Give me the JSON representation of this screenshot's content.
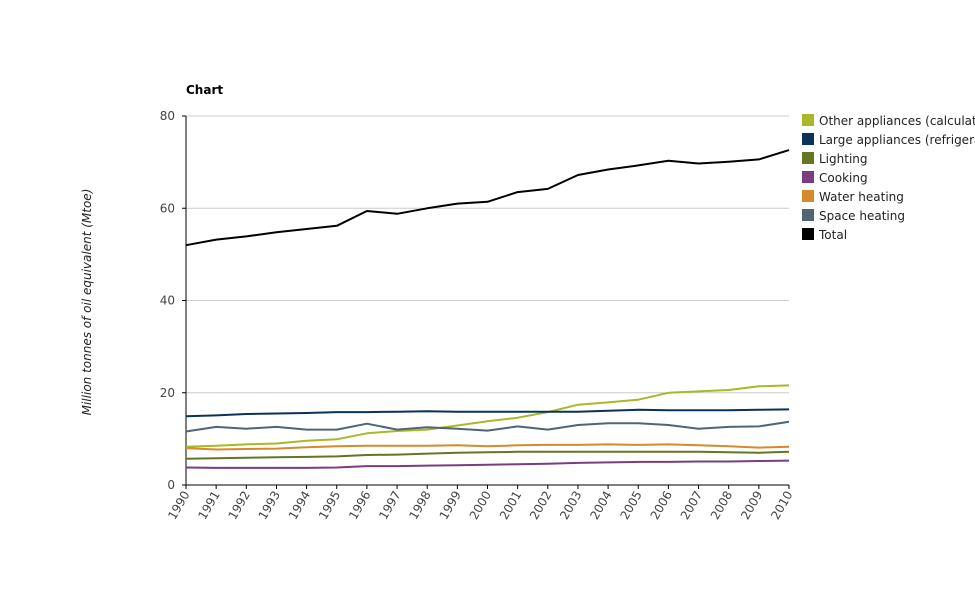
{
  "chart_data": {
    "type": "line",
    "title": "Chart",
    "xlabel": "",
    "ylabel": "Million tonnes of oil equivalent (Mtoe)",
    "ylim": [
      0,
      80
    ],
    "yticks": [
      0,
      20,
      40,
      60,
      80
    ],
    "grid": "horizontal",
    "legend_position": "right",
    "x": [
      "1990",
      "1991",
      "1992",
      "1993",
      "1994",
      "1995",
      "1996",
      "1997",
      "1998",
      "1999",
      "2000",
      "2001",
      "2002",
      "2003",
      "2004",
      "2005",
      "2006",
      "2007",
      "2008",
      "2009",
      "2010"
    ],
    "series": [
      {
        "name": "Other appliances (calculated)",
        "color": "#a8b927",
        "values": [
          8.3,
          8.5,
          8.8,
          9.0,
          9.6,
          9.9,
          11.2,
          11.7,
          12.0,
          12.9,
          13.8,
          14.6,
          15.8,
          17.4,
          17.9,
          18.5,
          20.0,
          20.3,
          20.6,
          21.4,
          21.6
        ]
      },
      {
        "name": "Large appliances (refrigeration, wet and cold)",
        "color": "#0b3258",
        "values": [
          14.9,
          15.1,
          15.4,
          15.5,
          15.6,
          15.8,
          15.8,
          15.9,
          16.0,
          15.9,
          15.9,
          15.9,
          15.9,
          15.9,
          16.1,
          16.3,
          16.2,
          16.2,
          16.2,
          16.3,
          16.4
        ]
      },
      {
        "name": "Lighting",
        "color": "#667522",
        "values": [
          5.7,
          5.8,
          5.9,
          6.0,
          6.1,
          6.2,
          6.5,
          6.6,
          6.8,
          7.0,
          7.1,
          7.2,
          7.2,
          7.2,
          7.2,
          7.2,
          7.2,
          7.2,
          7.1,
          7.0,
          7.2
        ]
      },
      {
        "name": "Cooking",
        "color": "#7b3c80",
        "values": [
          3.8,
          3.7,
          3.7,
          3.7,
          3.7,
          3.8,
          4.1,
          4.1,
          4.2,
          4.3,
          4.4,
          4.5,
          4.6,
          4.8,
          4.9,
          5.0,
          5.0,
          5.1,
          5.1,
          5.2,
          5.3
        ]
      },
      {
        "name": "Water heating",
        "color": "#d58a2c",
        "values": [
          8.0,
          7.7,
          7.8,
          7.9,
          8.2,
          8.4,
          8.5,
          8.5,
          8.5,
          8.6,
          8.4,
          8.6,
          8.7,
          8.7,
          8.8,
          8.7,
          8.8,
          8.6,
          8.4,
          8.1,
          8.3
        ]
      },
      {
        "name": "Space heating",
        "color": "#4f6577",
        "values": [
          11.6,
          12.6,
          12.2,
          12.6,
          12.0,
          12.0,
          13.3,
          12.0,
          12.5,
          12.2,
          11.8,
          12.7,
          12.0,
          13.0,
          13.4,
          13.4,
          13.0,
          12.2,
          12.6,
          12.7,
          13.7
        ]
      },
      {
        "name": "Total",
        "color": "#000000",
        "values": [
          52.0,
          53.2,
          53.9,
          54.8,
          55.5,
          56.2,
          59.4,
          58.8,
          60.0,
          61.0,
          61.4,
          63.5,
          64.2,
          67.2,
          68.4,
          69.3,
          70.3,
          69.7,
          70.1,
          70.6,
          72.6
        ]
      }
    ]
  }
}
